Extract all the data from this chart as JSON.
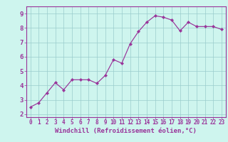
{
  "x": [
    0,
    1,
    2,
    3,
    4,
    5,
    6,
    7,
    8,
    9,
    10,
    11,
    12,
    13,
    14,
    15,
    16,
    17,
    18,
    19,
    20,
    21,
    22,
    23
  ],
  "y": [
    2.5,
    2.8,
    3.5,
    4.2,
    3.7,
    4.4,
    4.4,
    4.4,
    4.15,
    4.7,
    5.8,
    5.55,
    6.9,
    7.75,
    8.4,
    8.85,
    8.75,
    8.55,
    7.8,
    8.4,
    8.1,
    8.1,
    8.1,
    7.9
  ],
  "line_color": "#993399",
  "marker": "D",
  "marker_size": 2.2,
  "bg_color": "#cef5ee",
  "grid_color": "#99cccc",
  "xlabel": "Windchill (Refroidissement éolien,°C)",
  "xlabel_color": "#993399",
  "tick_color": "#993399",
  "spine_color": "#993399",
  "xlim": [
    -0.5,
    23.5
  ],
  "ylim": [
    1.8,
    9.5
  ],
  "yticks": [
    2,
    3,
    4,
    5,
    6,
    7,
    8,
    9
  ],
  "xticks": [
    0,
    1,
    2,
    3,
    4,
    5,
    6,
    7,
    8,
    9,
    10,
    11,
    12,
    13,
    14,
    15,
    16,
    17,
    18,
    19,
    20,
    21,
    22,
    23
  ],
  "xtick_labels": [
    "0",
    "1",
    "2",
    "3",
    "4",
    "5",
    "6",
    "7",
    "8",
    "9",
    "10",
    "11",
    "12",
    "13",
    "14",
    "15",
    "16",
    "17",
    "18",
    "19",
    "20",
    "21",
    "22",
    "23"
  ],
  "tick_fontsize": 5.5,
  "xlabel_fontsize": 6.5,
  "linewidth": 0.85
}
